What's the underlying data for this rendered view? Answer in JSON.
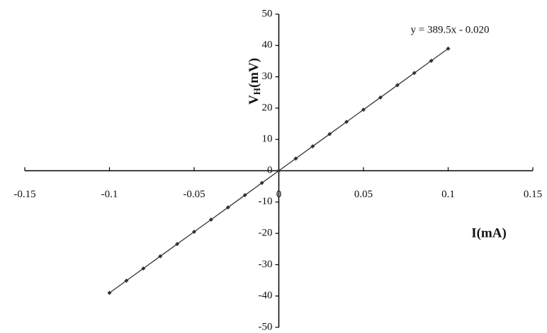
{
  "chart_data": {
    "type": "scatter",
    "ylabel": {
      "main": "V",
      "sub": "H",
      "unit": "(mV)"
    },
    "xlabel": "I(mA)",
    "annotation": "y = 389.5x - 0.020",
    "xlim": [
      -0.15,
      0.15
    ],
    "xticks": [
      -0.15,
      -0.1,
      -0.05,
      0,
      0.05,
      0.1,
      0.15
    ],
    "ylim": [
      -50,
      50
    ],
    "yticks": [
      -50,
      -40,
      -30,
      -20,
      -10,
      0,
      10,
      20,
      30,
      40,
      50
    ],
    "grid": false,
    "series": [
      {
        "color": "#333333",
        "x": [
          -0.1,
          -0.09,
          -0.08,
          -0.07,
          -0.06,
          -0.05,
          -0.04,
          -0.03,
          -0.02,
          -0.01,
          0,
          0.01,
          0.02,
          0.03,
          0.04,
          0.05,
          0.06,
          0.07,
          0.08,
          0.09,
          0.1
        ],
        "values": [
          -39.0,
          -35.1,
          -31.2,
          -27.3,
          -23.4,
          -19.5,
          -15.6,
          -11.7,
          -7.8,
          -3.9,
          0,
          3.9,
          7.8,
          11.7,
          15.6,
          19.5,
          23.4,
          27.3,
          31.2,
          35.1,
          39.0
        ]
      }
    ]
  }
}
